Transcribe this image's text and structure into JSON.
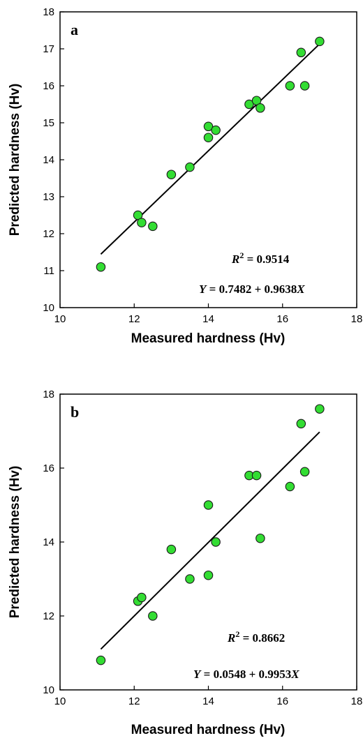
{
  "colors": {
    "marker_fill": "#33dd33",
    "marker_stroke": "#1a1a1a",
    "line": "#000000",
    "axis": "#000000"
  },
  "chart_data": [
    {
      "type": "scatter",
      "panel_label": "a",
      "xlabel": "Measured hardness (Hv)",
      "ylabel": "Predicted hardness (Hv)",
      "xlim": [
        10,
        18
      ],
      "ylim": [
        10,
        18
      ],
      "x_ticks": [
        10,
        12,
        14,
        16,
        18
      ],
      "y_ticks": [
        10,
        11,
        12,
        13,
        14,
        15,
        16,
        17,
        18
      ],
      "grid": false,
      "points": [
        {
          "x": 11.1,
          "y": 11.1
        },
        {
          "x": 12.1,
          "y": 12.5
        },
        {
          "x": 12.2,
          "y": 12.3
        },
        {
          "x": 12.5,
          "y": 12.2
        },
        {
          "x": 13.0,
          "y": 13.6
        },
        {
          "x": 13.5,
          "y": 13.8
        },
        {
          "x": 14.0,
          "y": 14.9
        },
        {
          "x": 14.0,
          "y": 14.6
        },
        {
          "x": 14.2,
          "y": 14.8
        },
        {
          "x": 15.1,
          "y": 15.5
        },
        {
          "x": 15.3,
          "y": 15.6
        },
        {
          "x": 15.4,
          "y": 15.4
        },
        {
          "x": 16.2,
          "y": 16.0
        },
        {
          "x": 16.5,
          "y": 16.9
        },
        {
          "x": 16.6,
          "y": 16.0
        },
        {
          "x": 17.0,
          "y": 17.2
        }
      ],
      "fit": {
        "intercept": 0.7482,
        "slope": 0.9638,
        "x_range": [
          11.1,
          17.0
        ]
      },
      "r2_var": "R",
      "r2_exp": "2",
      "r2_rest": " = 0.9514",
      "eq_var": "Y",
      "eq_mid": " = 0.7482 + 0.9638",
      "eq_x": "X"
    },
    {
      "type": "scatter",
      "panel_label": "b",
      "xlabel": "Measured hardness (Hv)",
      "ylabel": "Predicted hardness (Hv)",
      "xlim": [
        10,
        18
      ],
      "ylim": [
        10,
        18
      ],
      "x_ticks": [
        10,
        12,
        14,
        16,
        18
      ],
      "y_ticks": [
        10,
        12,
        14,
        16,
        18
      ],
      "grid": false,
      "points": [
        {
          "x": 11.1,
          "y": 10.8
        },
        {
          "x": 12.1,
          "y": 12.4
        },
        {
          "x": 12.2,
          "y": 12.5
        },
        {
          "x": 12.5,
          "y": 12.0
        },
        {
          "x": 13.0,
          "y": 13.8
        },
        {
          "x": 13.5,
          "y": 13.0
        },
        {
          "x": 14.0,
          "y": 15.0
        },
        {
          "x": 14.0,
          "y": 13.1
        },
        {
          "x": 14.2,
          "y": 14.0
        },
        {
          "x": 15.1,
          "y": 15.8
        },
        {
          "x": 15.3,
          "y": 15.8
        },
        {
          "x": 15.4,
          "y": 14.1
        },
        {
          "x": 16.2,
          "y": 15.5
        },
        {
          "x": 16.5,
          "y": 17.2
        },
        {
          "x": 16.6,
          "y": 15.9
        },
        {
          "x": 17.0,
          "y": 17.6
        }
      ],
      "fit": {
        "intercept": 0.0548,
        "slope": 0.9953,
        "x_range": [
          11.1,
          17.0
        ]
      },
      "r2_var": "R",
      "r2_exp": "2",
      "r2_rest": " = 0.8662",
      "eq_var": "Y",
      "eq_mid": " = 0.0548 + 0.9953",
      "eq_x": "X"
    }
  ]
}
